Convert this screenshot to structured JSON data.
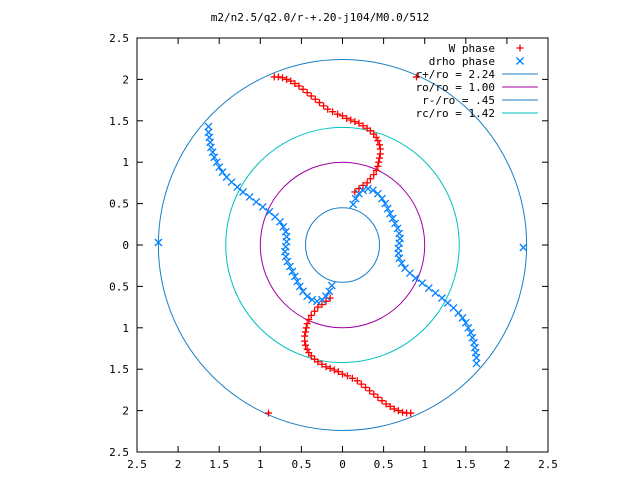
{
  "chart_data": {
    "type": "scatter",
    "title": "m2/n2.5/q2.0/r-+.20-j104/M0.0/512",
    "xlabel": "",
    "ylabel": "",
    "xlim": [
      -2.5,
      2.5
    ],
    "ylim": [
      -2.5,
      2.5
    ],
    "x_ticks": [
      -2.5,
      -2,
      -1.5,
      -1,
      -0.5,
      0,
      0.5,
      1,
      1.5,
      2,
      2.5
    ],
    "y_ticks": [
      -2.5,
      -2,
      -1.5,
      -1,
      -0.5,
      0,
      0.5,
      1,
      1.5,
      2,
      2.5
    ],
    "x_tick_labels": [
      "2.5",
      "2",
      "1.5",
      "1",
      "0.5",
      "0",
      "0.5",
      "1",
      "1.5",
      "2",
      "2.5"
    ],
    "y_tick_labels": [
      "2.5",
      "2",
      "1.5",
      "1",
      "0.5",
      "0",
      "0.5",
      "1",
      "1.5",
      "2",
      "2.5"
    ],
    "grid": false,
    "legend_position": "top-right",
    "series": [
      {
        "name": "W phase",
        "marker": "+",
        "color": "#ff0000",
        "points": [
          [
            -0.83,
            2.03
          ],
          [
            -0.78,
            2.03
          ],
          [
            -0.73,
            2.02
          ],
          [
            -0.68,
            2.0
          ],
          [
            -0.63,
            1.98
          ],
          [
            -0.58,
            1.95
          ],
          [
            -0.53,
            1.92
          ],
          [
            -0.48,
            1.88
          ],
          [
            -0.43,
            1.84
          ],
          [
            -0.38,
            1.8
          ],
          [
            -0.33,
            1.76
          ],
          [
            -0.28,
            1.72
          ],
          [
            -0.23,
            1.68
          ],
          [
            -0.18,
            1.64
          ],
          [
            -0.12,
            1.61
          ],
          [
            -0.06,
            1.58
          ],
          [
            0.0,
            1.56
          ],
          [
            0.05,
            1.53
          ],
          [
            0.1,
            1.51
          ],
          [
            0.15,
            1.49
          ],
          [
            0.2,
            1.47
          ],
          [
            0.25,
            1.44
          ],
          [
            0.3,
            1.41
          ],
          [
            0.34,
            1.38
          ],
          [
            0.38,
            1.34
          ],
          [
            0.41,
            1.3
          ],
          [
            0.43,
            1.26
          ],
          [
            0.45,
            1.21
          ],
          [
            0.46,
            1.16
          ],
          [
            0.46,
            1.1
          ],
          [
            0.45,
            1.05
          ],
          [
            0.44,
            1.0
          ],
          [
            0.43,
            0.95
          ],
          [
            0.41,
            0.9
          ],
          [
            0.38,
            0.85
          ],
          [
            0.34,
            0.8
          ],
          [
            0.3,
            0.75
          ],
          [
            0.25,
            0.72
          ],
          [
            0.2,
            0.68
          ],
          [
            0.15,
            0.64
          ],
          [
            0.9,
            2.03
          ],
          [
            0.83,
            -2.03
          ],
          [
            0.78,
            -2.03
          ],
          [
            0.73,
            -2.02
          ],
          [
            0.68,
            -2.0
          ],
          [
            0.63,
            -1.98
          ],
          [
            0.58,
            -1.95
          ],
          [
            0.53,
            -1.92
          ],
          [
            0.48,
            -1.88
          ],
          [
            0.43,
            -1.84
          ],
          [
            0.38,
            -1.8
          ],
          [
            0.33,
            -1.76
          ],
          [
            0.28,
            -1.72
          ],
          [
            0.23,
            -1.68
          ],
          [
            0.18,
            -1.64
          ],
          [
            0.12,
            -1.61
          ],
          [
            0.06,
            -1.58
          ],
          [
            0.0,
            -1.56
          ],
          [
            -0.05,
            -1.53
          ],
          [
            -0.1,
            -1.51
          ],
          [
            -0.15,
            -1.49
          ],
          [
            -0.2,
            -1.47
          ],
          [
            -0.25,
            -1.44
          ],
          [
            -0.3,
            -1.41
          ],
          [
            -0.34,
            -1.38
          ],
          [
            -0.38,
            -1.34
          ],
          [
            -0.41,
            -1.3
          ],
          [
            -0.43,
            -1.26
          ],
          [
            -0.45,
            -1.21
          ],
          [
            -0.46,
            -1.16
          ],
          [
            -0.46,
            -1.1
          ],
          [
            -0.45,
            -1.05
          ],
          [
            -0.44,
            -1.0
          ],
          [
            -0.43,
            -0.95
          ],
          [
            -0.41,
            -0.9
          ],
          [
            -0.38,
            -0.85
          ],
          [
            -0.34,
            -0.8
          ],
          [
            -0.3,
            -0.75
          ],
          [
            -0.25,
            -0.72
          ],
          [
            -0.2,
            -0.68
          ],
          [
            -0.15,
            -0.64
          ],
          [
            -0.9,
            -2.03
          ]
        ]
      },
      {
        "name": "drho phase",
        "marker": "x",
        "color": "#0080ff",
        "points": [
          [
            1.63,
            -1.43
          ],
          [
            1.63,
            -1.36
          ],
          [
            1.62,
            -1.3
          ],
          [
            1.61,
            -1.24
          ],
          [
            1.6,
            -1.18
          ],
          [
            1.58,
            -1.12
          ],
          [
            1.56,
            -1.06
          ],
          [
            1.53,
            -1.0
          ],
          [
            1.5,
            -0.94
          ],
          [
            1.46,
            -0.88
          ],
          [
            1.41,
            -0.82
          ],
          [
            1.35,
            -0.76
          ],
          [
            1.28,
            -0.7
          ],
          [
            1.21,
            -0.64
          ],
          [
            1.13,
            -0.58
          ],
          [
            1.05,
            -0.52
          ],
          [
            0.97,
            -0.46
          ],
          [
            0.89,
            -0.4
          ],
          [
            0.82,
            -0.34
          ],
          [
            0.76,
            -0.28
          ],
          [
            0.72,
            -0.22
          ],
          [
            0.69,
            -0.16
          ],
          [
            0.68,
            -0.1
          ],
          [
            0.68,
            -0.04
          ],
          [
            0.69,
            0.02
          ],
          [
            0.7,
            0.08
          ],
          [
            0.69,
            0.14
          ],
          [
            0.67,
            0.2
          ],
          [
            0.64,
            0.26
          ],
          [
            0.61,
            0.32
          ],
          [
            0.58,
            0.38
          ],
          [
            0.55,
            0.44
          ],
          [
            0.52,
            0.5
          ],
          [
            0.48,
            0.56
          ],
          [
            0.43,
            0.62
          ],
          [
            0.37,
            0.66
          ],
          [
            0.31,
            0.68
          ],
          [
            0.25,
            0.66
          ],
          [
            0.2,
            0.62
          ],
          [
            0.16,
            0.56
          ],
          [
            0.13,
            0.49
          ],
          [
            2.2,
            -0.03
          ],
          [
            -1.63,
            1.43
          ],
          [
            -1.63,
            1.36
          ],
          [
            -1.62,
            1.3
          ],
          [
            -1.61,
            1.24
          ],
          [
            -1.6,
            1.18
          ],
          [
            -1.58,
            1.12
          ],
          [
            -1.56,
            1.06
          ],
          [
            -1.53,
            1.0
          ],
          [
            -1.5,
            0.94
          ],
          [
            -1.46,
            0.88
          ],
          [
            -1.41,
            0.82
          ],
          [
            -1.35,
            0.76
          ],
          [
            -1.28,
            0.7
          ],
          [
            -1.21,
            0.64
          ],
          [
            -1.13,
            0.58
          ],
          [
            -1.05,
            0.52
          ],
          [
            -0.97,
            0.46
          ],
          [
            -0.89,
            0.4
          ],
          [
            -0.82,
            0.34
          ],
          [
            -0.76,
            0.28
          ],
          [
            -0.72,
            0.22
          ],
          [
            -0.69,
            0.16
          ],
          [
            -0.68,
            0.1
          ],
          [
            -0.68,
            0.04
          ],
          [
            -0.69,
            -0.02
          ],
          [
            -0.7,
            -0.08
          ],
          [
            -0.69,
            -0.14
          ],
          [
            -0.67,
            -0.2
          ],
          [
            -0.64,
            -0.26
          ],
          [
            -0.61,
            -0.32
          ],
          [
            -0.58,
            -0.38
          ],
          [
            -0.55,
            -0.44
          ],
          [
            -0.52,
            -0.5
          ],
          [
            -0.48,
            -0.56
          ],
          [
            -0.43,
            -0.62
          ],
          [
            -0.37,
            -0.66
          ],
          [
            -0.31,
            -0.68
          ],
          [
            -0.25,
            -0.66
          ],
          [
            -0.2,
            -0.62
          ],
          [
            -0.16,
            -0.56
          ],
          [
            -0.13,
            -0.49
          ],
          [
            -2.24,
            0.03
          ]
        ]
      },
      {
        "name": "r+/ro = 2.24",
        "type": "circle",
        "radius": 2.24,
        "color": "#1a7fc4"
      },
      {
        "name": "ro/ro = 1.00",
        "type": "circle",
        "radius": 1.0,
        "color": "#a000a0"
      },
      {
        "name": "r-/ro = .45",
        "type": "circle",
        "radius": 0.45,
        "color": "#1a7fc4"
      },
      {
        "name": "rc/ro = 1.42",
        "type": "circle",
        "radius": 1.42,
        "color": "#00c0c0"
      }
    ]
  }
}
